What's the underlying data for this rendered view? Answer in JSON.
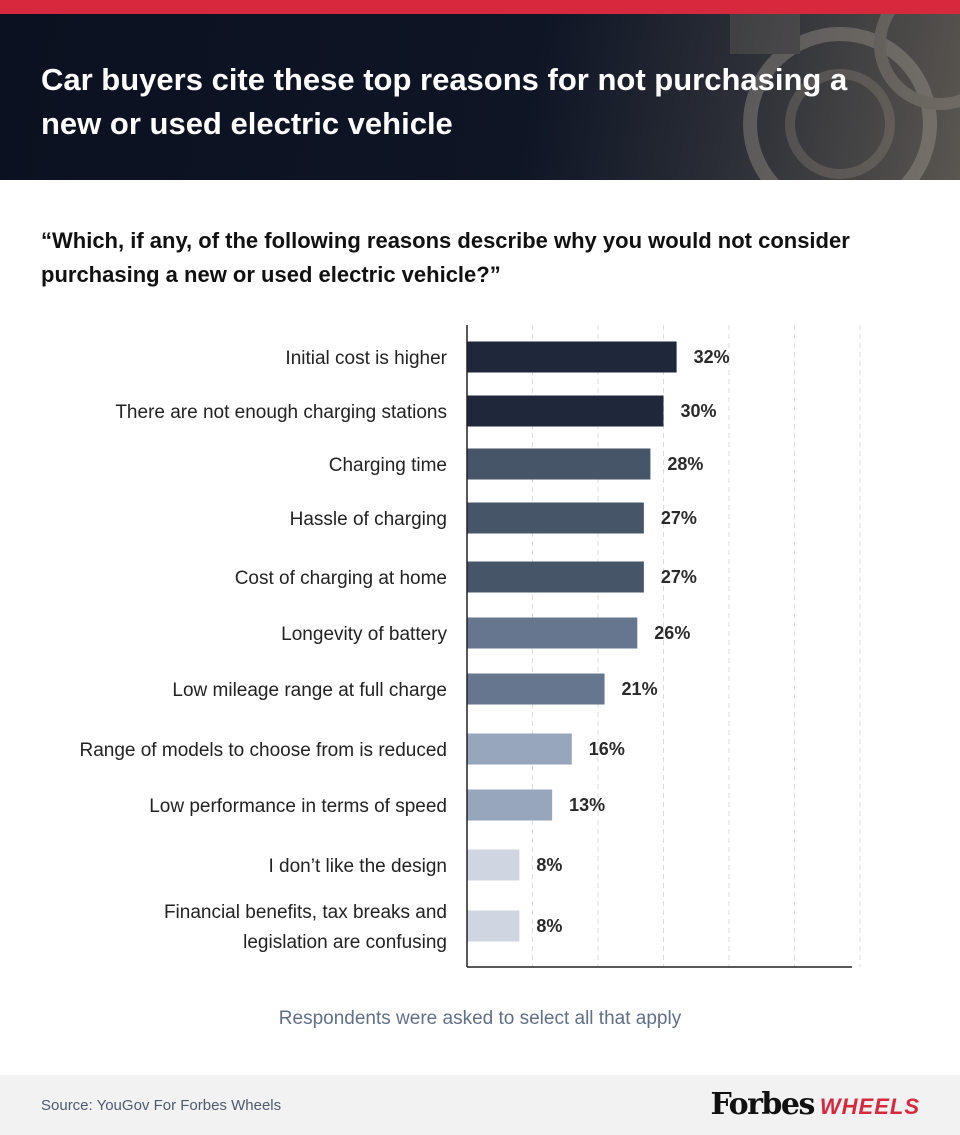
{
  "header": {
    "title": "Car buyers cite these top reasons for not purchasing a new or used electric vehicle"
  },
  "question": "“Which, if any, of the following reasons describe why you would not consider purchasing a new or used electric vehicle?”",
  "note": "Respondents were asked to select all that apply",
  "footer": {
    "source": "Source: YouGov For Forbes Wheels",
    "brand_main": "Forbes",
    "brand_sub": "WHEELS"
  },
  "colors": {
    "accent": "#d6293d"
  },
  "chart_data": {
    "type": "bar",
    "orientation": "horizontal",
    "title": "",
    "xlabel": "",
    "ylabel": "",
    "xlim": [
      0,
      60
    ],
    "grid": true,
    "categories": [
      [
        "Initial cost is higher"
      ],
      [
        "There are not enough charging stations"
      ],
      [
        "Charging time"
      ],
      [
        "Hassle of charging"
      ],
      [
        "Cost of charging at home"
      ],
      [
        "Longevity of battery"
      ],
      [
        "Low mileage range at full charge"
      ],
      [
        "Range of models to choose from is reduced"
      ],
      [
        "Low performance in terms of speed"
      ],
      [
        "I don’t like the design"
      ],
      [
        "Financial benefits, tax breaks and",
        "legislation are confusing"
      ]
    ],
    "values": [
      32,
      30,
      28,
      27,
      27,
      26,
      21,
      16,
      13,
      8,
      8
    ],
    "value_labels": [
      "32%",
      "30%",
      "28%",
      "27%",
      "27%",
      "26%",
      "21%",
      "16%",
      "13%",
      "8%",
      "8%"
    ],
    "bar_colors": [
      "#1f283a",
      "#1f283a",
      "#475569",
      "#475569",
      "#475569",
      "#66768e",
      "#66768e",
      "#97a6bd",
      "#97a6bd",
      "#cfd6e1",
      "#cfd6e1"
    ]
  }
}
